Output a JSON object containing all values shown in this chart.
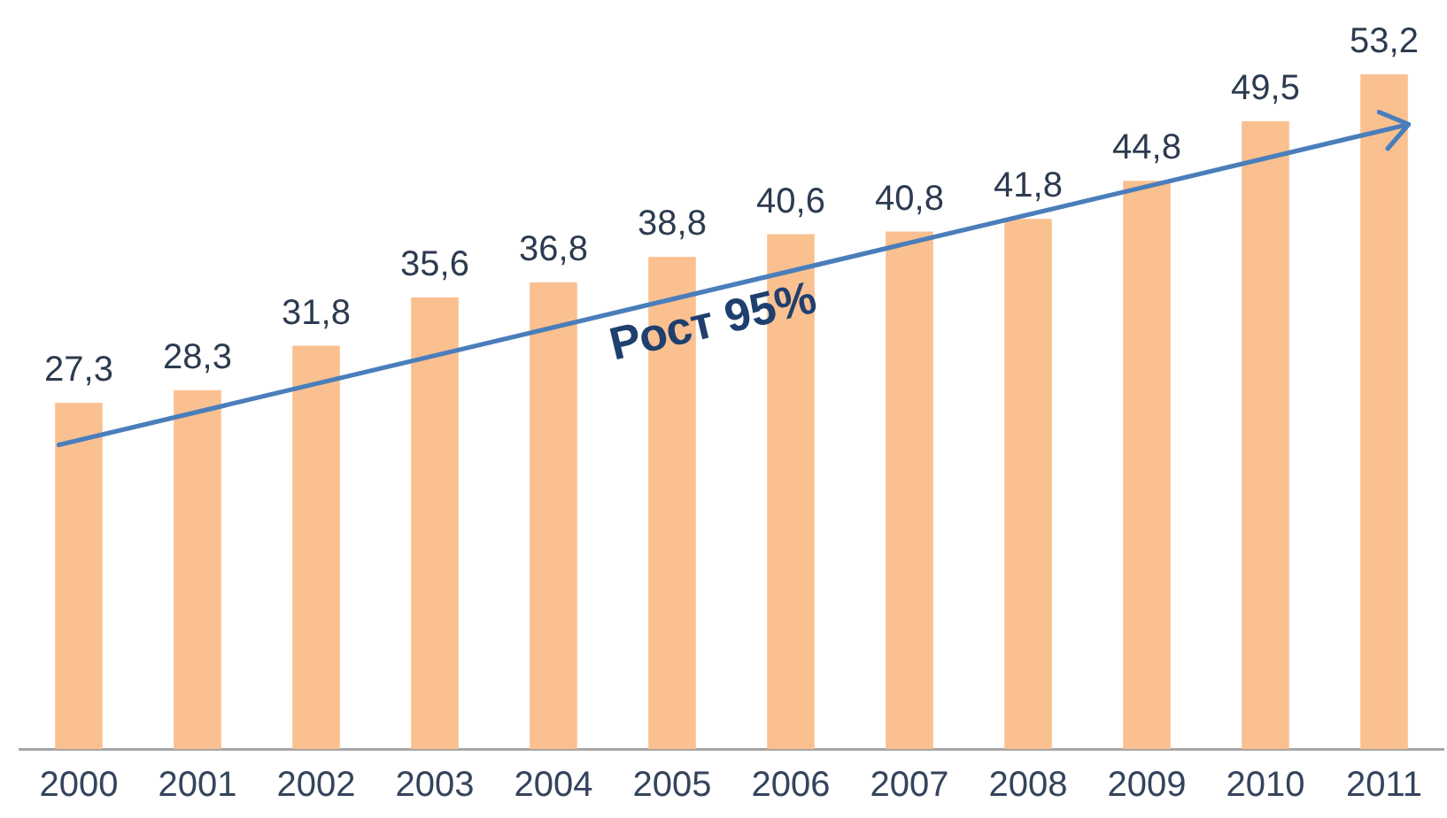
{
  "chart_data": {
    "type": "bar",
    "categories": [
      "2000",
      "2001",
      "2002",
      "2003",
      "2004",
      "2005",
      "2006",
      "2007",
      "2008",
      "2009",
      "2010",
      "2011"
    ],
    "color": "#fac090",
    "values": [
      27.3,
      28.3,
      31.8,
      35.6,
      36.8,
      38.8,
      40.6,
      40.8,
      41.8,
      44.8,
      49.5,
      53.2
    ],
    "value_labels": [
      "27,3",
      "28,3",
      "31,8",
      "35,6",
      "36,8",
      "38,8",
      "40,6",
      "40,8",
      "41,8",
      "44,8",
      "49,5",
      "53,2"
    ],
    "annotations": [
      "Рост 95%"
    ],
    "legend": false,
    "grid": false,
    "tick_labels": "x"
  }
}
